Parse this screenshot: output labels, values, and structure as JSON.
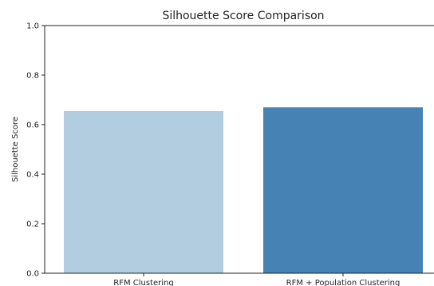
{
  "chart_data": {
    "type": "bar",
    "title": "Silhouette Score Comparison",
    "xlabel": "",
    "ylabel": "Silhouette Score",
    "categories": [
      "RFM Clustering",
      "RFM + Population Clustering"
    ],
    "values": [
      0.655,
      0.67
    ],
    "colors": [
      "#b3cde0",
      "#4682b4"
    ],
    "ylim": [
      0.0,
      1.0
    ],
    "yticks": [
      "0.0",
      "0.2",
      "0.4",
      "0.6",
      "0.8",
      "1.0"
    ],
    "grid": false,
    "legend": "none"
  }
}
